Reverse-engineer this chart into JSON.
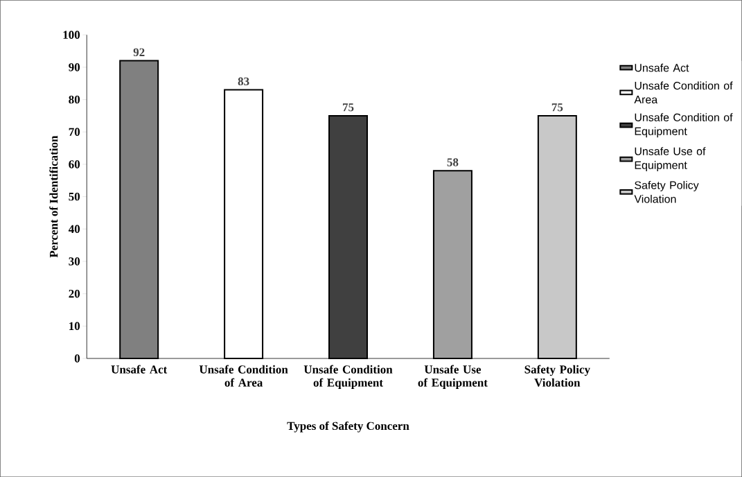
{
  "chart_data": {
    "type": "bar",
    "xlabel": "Types of Safety Concern",
    "ylabel": "Percent of Identification",
    "categories": [
      "Unsafe Act",
      "Unsafe Condition of Area",
      "Unsafe Condition of Equipment",
      "Unsafe Use of Equipment",
      "Safety Policy Violation"
    ],
    "series": [
      {
        "name": "Unsafe Act",
        "color": "#808080",
        "values": [
          92,
          null,
          null,
          null,
          null
        ]
      },
      {
        "name": "Unsafe Condition of Area",
        "color": "#ffffff",
        "values": [
          null,
          83,
          null,
          null,
          null
        ]
      },
      {
        "name": "Unsafe Condition of Equipment",
        "color": "#404040",
        "values": [
          null,
          null,
          75,
          null,
          null
        ]
      },
      {
        "name": "Unsafe Use of Equipment",
        "color": "#a0a0a0",
        "values": [
          null,
          null,
          null,
          58,
          null
        ]
      },
      {
        "name": "Safety Policy Violation",
        "color": "#c8c8c8",
        "values": [
          null,
          null,
          null,
          null,
          75
        ]
      }
    ],
    "ylim": [
      0,
      100
    ],
    "yticks": [
      0,
      10,
      20,
      30,
      40,
      50,
      60,
      70,
      80,
      90,
      100
    ],
    "data_labels": true,
    "legend": "right",
    "grid": false
  }
}
